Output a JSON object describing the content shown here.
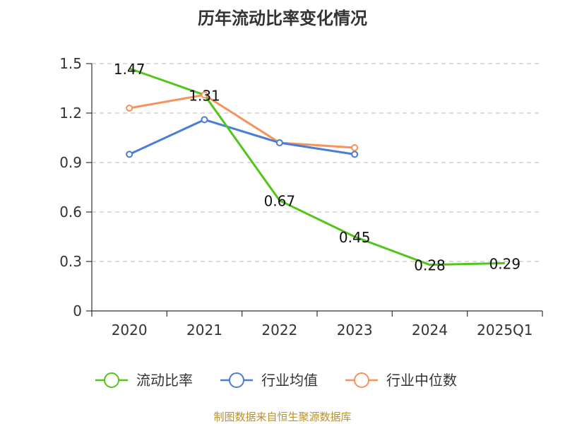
{
  "chart_data": {
    "type": "line",
    "title": "历年流动比率变化情况",
    "categories": [
      "2020",
      "2021",
      "2022",
      "2023",
      "2024",
      "2025Q1"
    ],
    "y_ticks": [
      "0",
      "0.3",
      "0.6",
      "0.9",
      "1.2",
      "1.5"
    ],
    "ylim": [
      0,
      1.5
    ],
    "grid": true,
    "legend_position": "bottom",
    "series": [
      {
        "name": "流动比率",
        "color": "#52c41a",
        "values": [
          1.47,
          1.31,
          0.67,
          0.45,
          0.28,
          0.29
        ],
        "labels": [
          "1.47",
          "1.31",
          "0.67",
          "0.45",
          "0.28",
          "0.29"
        ]
      },
      {
        "name": "行业均值",
        "color": "#4a7ed6",
        "values": [
          0.95,
          1.16,
          1.02,
          0.95,
          null,
          null
        ]
      },
      {
        "name": "行业中位数",
        "color": "#f5925e",
        "values": [
          1.23,
          1.31,
          1.02,
          0.99,
          null,
          null
        ]
      }
    ]
  },
  "footer": {
    "source": "制图数据来自恒生聚源数据库"
  }
}
